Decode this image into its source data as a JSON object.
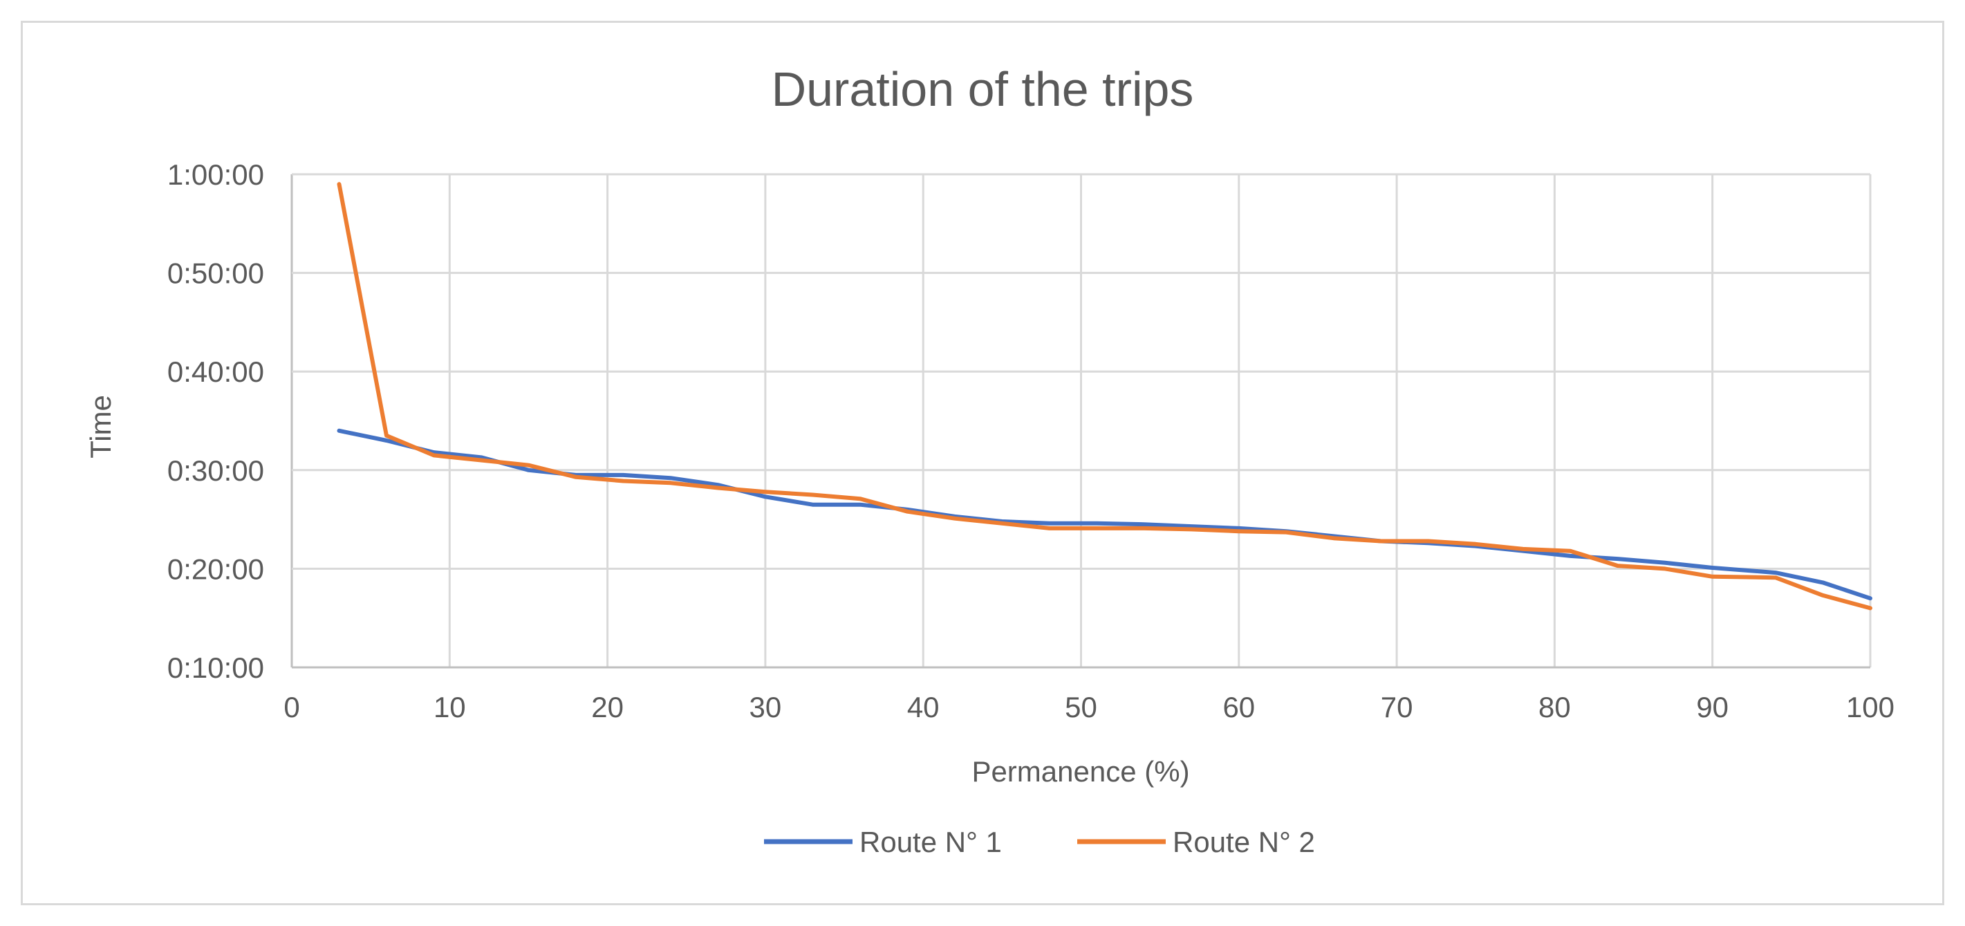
{
  "chart_data": {
    "type": "line",
    "title": "Duration of the trips",
    "xlabel": "Permanence (%)",
    "ylabel": "Time",
    "xlim": [
      0,
      100
    ],
    "ylim_minutes": [
      10,
      60
    ],
    "x_ticks": [
      "0",
      "10",
      "20",
      "30",
      "40",
      "50",
      "60",
      "70",
      "80",
      "90",
      "100"
    ],
    "y_ticks": [
      "0:10:00",
      "0:20:00",
      "0:30:00",
      "0:40:00",
      "0:50:00",
      "1:00:00"
    ],
    "grid": true,
    "legend_position": "bottom",
    "series": [
      {
        "name": "Route N° 1",
        "color": "#4472c4",
        "x": [
          3,
          6,
          9,
          12,
          15,
          18,
          21,
          24,
          27,
          30,
          33,
          36,
          39,
          42,
          45,
          48,
          51,
          54,
          57,
          60,
          63,
          66,
          69,
          72,
          75,
          78,
          81,
          84,
          87,
          90,
          94,
          97,
          100
        ],
        "y_minutes": [
          34.0,
          33.0,
          31.8,
          31.3,
          30.0,
          29.5,
          29.5,
          29.2,
          28.5,
          27.3,
          26.5,
          26.5,
          26.0,
          25.3,
          24.8,
          24.6,
          24.6,
          24.5,
          24.3,
          24.1,
          23.8,
          23.3,
          22.8,
          22.6,
          22.3,
          21.8,
          21.3,
          21.0,
          20.6,
          20.1,
          19.6,
          18.6,
          17.0
        ]
      },
      {
        "name": "Route N° 2",
        "color": "#ed7d31",
        "x": [
          3,
          6,
          9,
          12,
          15,
          18,
          21,
          24,
          27,
          30,
          33,
          36,
          39,
          42,
          45,
          48,
          51,
          54,
          57,
          60,
          63,
          66,
          69,
          72,
          75,
          78,
          81,
          84,
          87,
          90,
          94,
          97,
          100
        ],
        "y_minutes": [
          59.0,
          33.5,
          31.5,
          31.0,
          30.5,
          29.3,
          28.9,
          28.7,
          28.2,
          27.8,
          27.5,
          27.1,
          25.8,
          25.1,
          24.6,
          24.1,
          24.1,
          24.1,
          24.0,
          23.8,
          23.7,
          23.1,
          22.8,
          22.8,
          22.5,
          22.0,
          21.8,
          20.3,
          20.0,
          19.2,
          19.1,
          17.3,
          16.0
        ]
      }
    ]
  }
}
